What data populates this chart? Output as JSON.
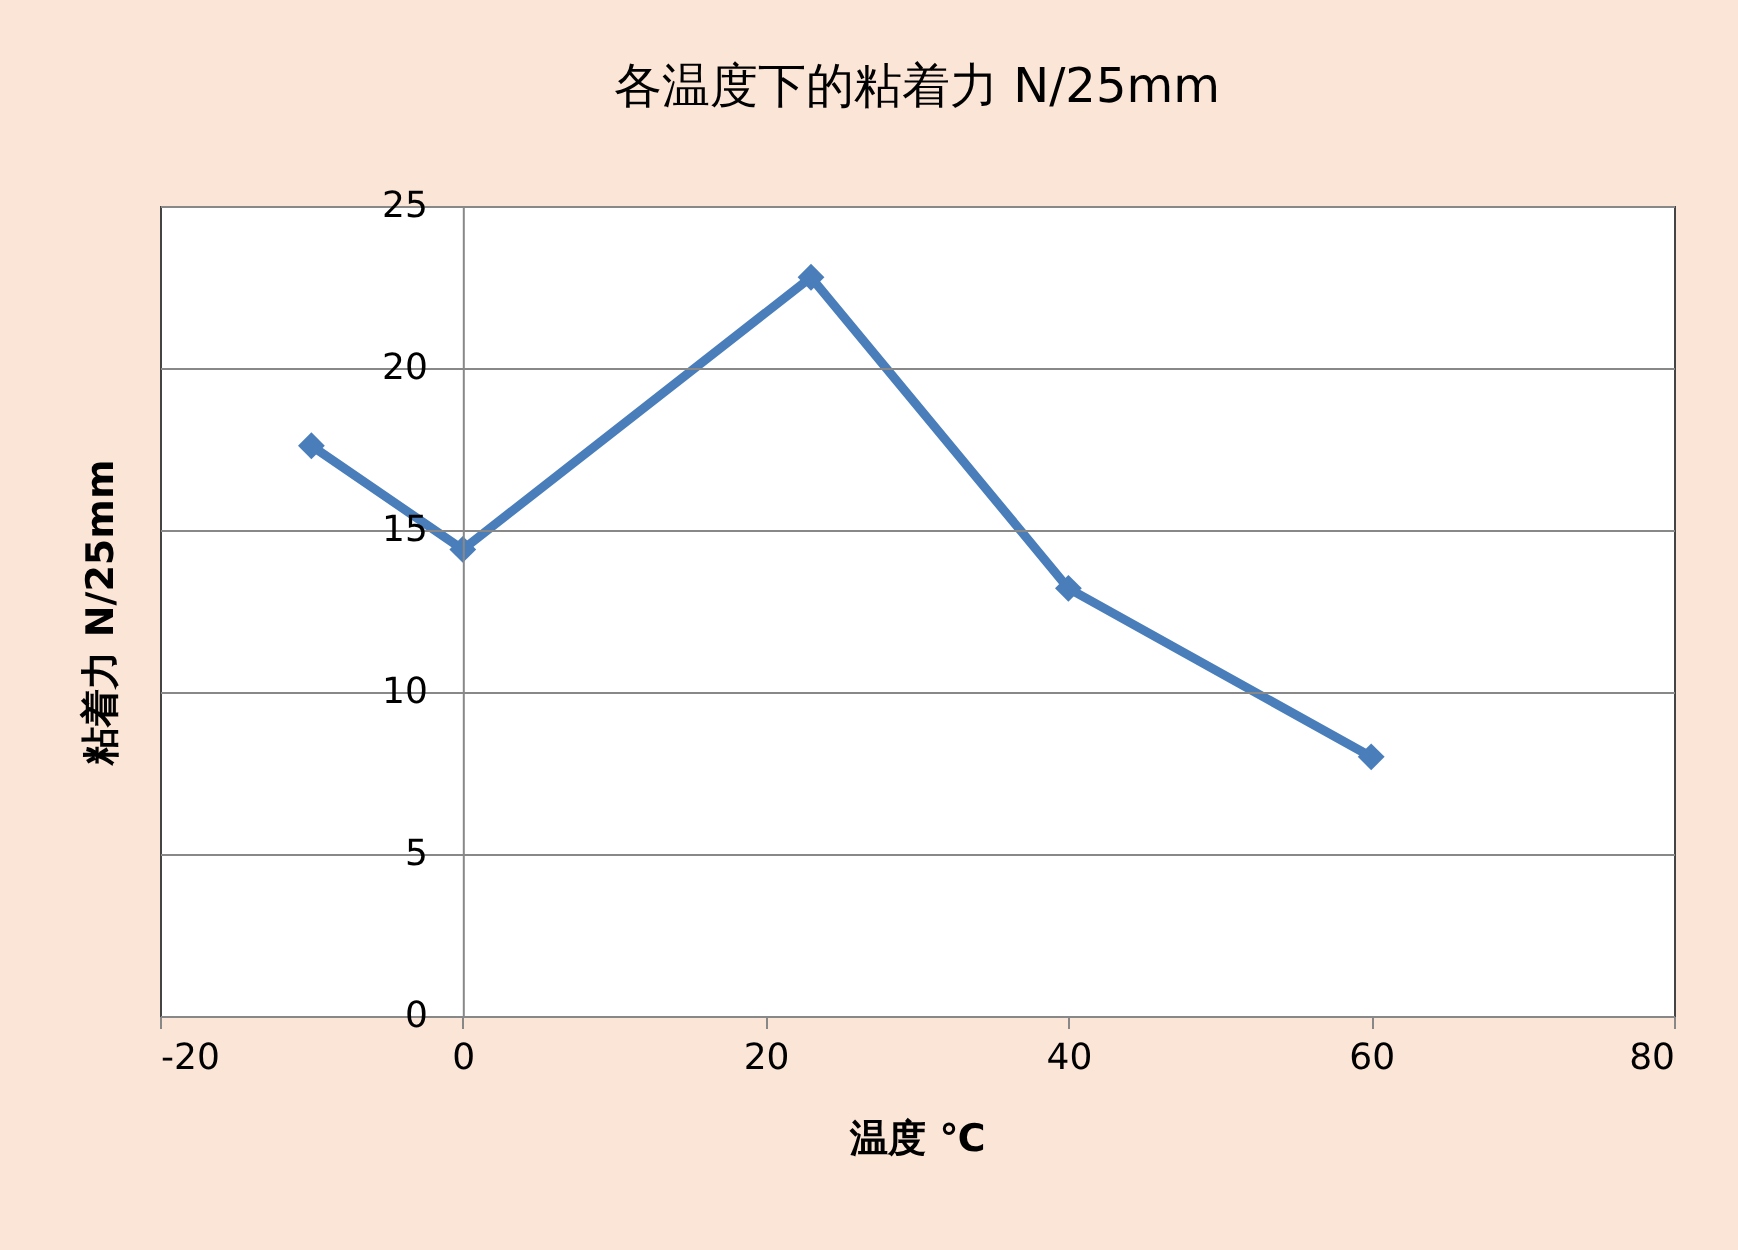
{
  "chart_data": {
    "type": "line",
    "title": "各温度下的粘着力  N/25mm",
    "xlabel": "温度  ℃",
    "ylabel": "粘着力  N/25mm",
    "x": [
      -10,
      0,
      23,
      40,
      60
    ],
    "series": [
      {
        "color": "#4a7ebb",
        "values": [
          17.6,
          14.4,
          22.8,
          13.2,
          8.0
        ]
      }
    ],
    "xlim": [
      -20,
      80
    ],
    "xticks": [
      -20,
      0,
      20,
      40,
      60,
      80
    ],
    "ylim": [
      0,
      25
    ],
    "yticks": [
      0,
      5,
      10,
      15,
      20,
      25
    ],
    "grid": "y",
    "marker": "diamond",
    "line_style": "solid"
  }
}
